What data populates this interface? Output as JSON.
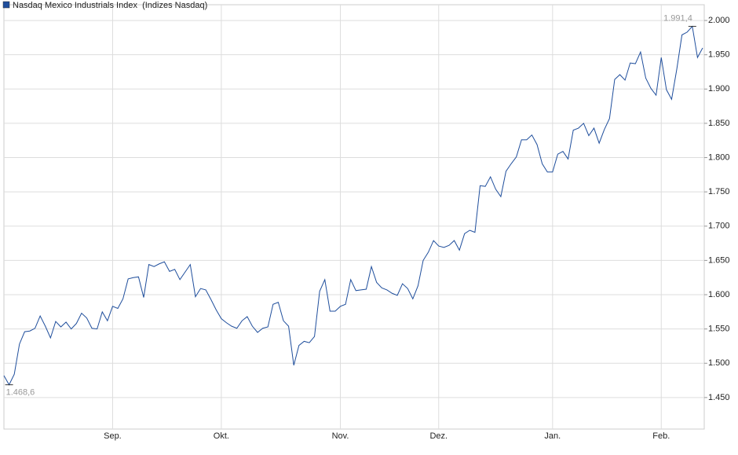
{
  "chart_data": {
    "type": "line",
    "series": [
      {
        "name": "Nasdaq Mexico Industrials Index  (Indizes Nasdaq)",
        "color": "#1f4e9c",
        "values": [
          1482,
          1468.6,
          1484,
          1528,
          1546,
          1547,
          1551,
          1569,
          1554,
          1537,
          1561,
          1553,
          1560,
          1550,
          1558,
          1573,
          1566,
          1551,
          1550,
          1575,
          1562,
          1583,
          1580,
          1594,
          1623,
          1625,
          1626,
          1596,
          1644,
          1641,
          1645,
          1648,
          1634,
          1637,
          1622,
          1633,
          1644,
          1597,
          1609,
          1607,
          1593,
          1578,
          1565,
          1559,
          1554,
          1551,
          1562,
          1568,
          1554,
          1545,
          1551,
          1553,
          1586,
          1589,
          1562,
          1554,
          1497,
          1526,
          1532,
          1530,
          1539,
          1605,
          1622,
          1576,
          1576,
          1583,
          1586,
          1622,
          1606,
          1607,
          1608,
          1641,
          1618,
          1610,
          1607,
          1602,
          1599,
          1616,
          1609,
          1594,
          1613,
          1650,
          1662,
          1679,
          1671,
          1669,
          1672,
          1679,
          1665,
          1689,
          1694,
          1691,
          1759,
          1758,
          1772,
          1754,
          1743,
          1780,
          1791,
          1801,
          1826,
          1826,
          1833,
          1819,
          1791,
          1779,
          1779,
          1805,
          1809,
          1798,
          1840,
          1843,
          1850,
          1832,
          1843,
          1821,
          1841,
          1857,
          1914,
          1921,
          1913,
          1938,
          1937,
          1954,
          1916,
          1901,
          1891,
          1946,
          1899,
          1885,
          1929,
          1979,
          1983,
          1991.4,
          1946,
          1960
        ],
        "value_labels": [
          null,
          "1.468,6",
          null,
          null,
          null,
          null,
          null,
          null,
          null,
          null,
          null,
          null,
          null,
          null,
          null,
          null,
          null,
          null,
          null,
          null,
          null,
          null,
          null,
          null,
          null,
          null,
          null,
          null,
          null,
          null,
          null,
          null,
          null,
          null,
          null,
          null,
          null,
          null,
          null,
          null,
          null,
          null,
          null,
          null,
          null,
          null,
          null,
          null,
          null,
          null,
          null,
          null,
          null,
          null,
          null,
          null,
          null,
          null,
          null,
          null,
          null,
          null,
          null,
          null,
          null,
          null,
          null,
          null,
          null,
          null,
          null,
          null,
          null,
          null,
          null,
          null,
          null,
          null,
          null,
          null,
          null,
          null,
          null,
          null,
          null,
          null,
          null,
          null,
          null,
          null,
          null,
          null,
          null,
          null,
          null,
          null,
          null,
          null,
          null,
          null,
          null,
          null,
          null,
          null,
          null,
          null,
          null,
          null,
          null,
          null,
          null,
          null,
          null,
          null,
          null,
          null,
          null,
          null,
          null,
          null,
          null,
          null,
          null,
          null,
          null,
          null,
          null,
          null,
          null,
          null,
          null,
          null,
          null,
          "1.991,4",
          null,
          null
        ]
      }
    ],
    "categories": [
      null,
      null,
      null,
      null,
      null,
      null,
      null,
      null,
      null,
      null,
      null,
      null,
      null,
      null,
      null,
      null,
      null,
      null,
      null,
      null,
      null,
      "Sep.",
      null,
      null,
      null,
      null,
      null,
      null,
      null,
      null,
      null,
      null,
      null,
      null,
      null,
      null,
      null,
      null,
      null,
      null,
      null,
      null,
      "Okt.",
      null,
      null,
      null,
      null,
      null,
      null,
      null,
      null,
      null,
      null,
      null,
      null,
      null,
      null,
      null,
      null,
      null,
      null,
      null,
      null,
      null,
      null,
      "Nov.",
      null,
      null,
      null,
      null,
      null,
      null,
      null,
      null,
      null,
      null,
      null,
      null,
      null,
      null,
      null,
      null,
      null,
      null,
      "Dez.",
      null,
      null,
      null,
      null,
      null,
      null,
      null,
      null,
      null,
      null,
      null,
      null,
      null,
      null,
      null,
      null,
      null,
      null,
      null,
      null,
      null,
      "Jan.",
      null,
      null,
      null,
      null,
      null,
      null,
      null,
      null,
      null,
      null,
      null,
      null,
      null,
      null,
      null,
      null,
      null,
      null,
      null,
      null,
      "Feb.",
      null,
      null,
      null,
      null,
      null,
      null,
      null,
      null
    ],
    "ylim": [
      1404,
      2023
    ],
    "yticks": [
      {
        "value": 1450,
        "label": "1.450"
      },
      {
        "value": 1500,
        "label": "1.500"
      },
      {
        "value": 1550,
        "label": "1.550"
      },
      {
        "value": 1600,
        "label": "1.600"
      },
      {
        "value": 1650,
        "label": "1.650"
      },
      {
        "value": 1700,
        "label": "1.700"
      },
      {
        "value": 1750,
        "label": "1.750"
      },
      {
        "value": 1800,
        "label": "1.800"
      },
      {
        "value": 1850,
        "label": "1.850"
      },
      {
        "value": 1900,
        "label": "1.900"
      },
      {
        "value": 1950,
        "label": "1.950"
      },
      {
        "value": 2000,
        "label": "2.000"
      }
    ],
    "grid": true
  }
}
